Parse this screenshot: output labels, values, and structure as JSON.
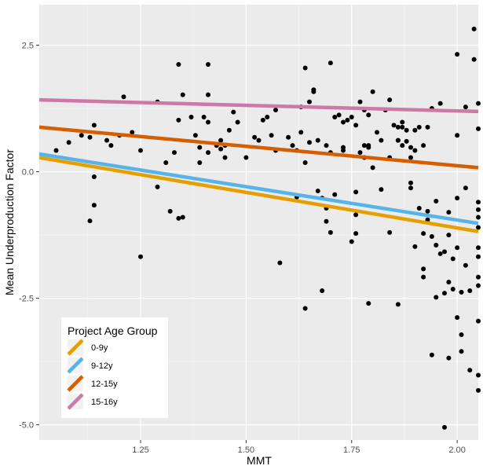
{
  "chart_data": {
    "type": "scatter",
    "xlabel": "MMT",
    "ylabel": "Mean Underproduction Factor",
    "xlim": [
      1.01,
      2.05
    ],
    "ylim": [
      -5.3,
      3.3
    ],
    "x_ticks": [
      {
        "value": 1.25,
        "label": "1.25"
      },
      {
        "value": 1.5,
        "label": "1.50"
      },
      {
        "value": 1.75,
        "label": "1.75"
      },
      {
        "value": 2.0,
        "label": "2.00"
      }
    ],
    "y_ticks": [
      {
        "value": 2.5,
        "label": "2.5"
      },
      {
        "value": 0.0,
        "label": "0.0"
      },
      {
        "value": -2.5,
        "label": "-2.5"
      },
      {
        "value": -5.0,
        "label": "-5.0"
      }
    ],
    "grid": true,
    "background": "#ebebeb",
    "legend": {
      "title": "Project Age Group",
      "placement": "bottom-left",
      "entries": [
        "0-9y",
        "9-12y",
        "12-15y",
        "15-16y"
      ]
    },
    "lines": [
      {
        "name": "0-9y",
        "color": "#e69f00",
        "x": [
          1.01,
          2.05
        ],
        "y": [
          0.28,
          -1.18
        ]
      },
      {
        "name": "9-12y",
        "color": "#56b4e9",
        "x": [
          1.01,
          2.05
        ],
        "y": [
          0.35,
          -1.02
        ]
      },
      {
        "name": "12-15y",
        "color": "#d55e00",
        "x": [
          1.01,
          2.05
        ],
        "y": [
          0.88,
          0.08
        ]
      },
      {
        "name": "15-16y",
        "color": "#cc79a7",
        "x": [
          1.01,
          2.05
        ],
        "y": [
          1.42,
          1.19
        ]
      }
    ],
    "points": [
      [
        1.05,
        0.42
      ],
      [
        1.08,
        0.58
      ],
      [
        1.11,
        0.72
      ],
      [
        1.13,
        0.68
      ],
      [
        1.14,
        0.92
      ],
      [
        1.14,
        -0.1
      ],
      [
        1.13,
        -0.97
      ],
      [
        1.14,
        -0.66
      ],
      [
        1.17,
        0.62
      ],
      [
        1.18,
        0.52
      ],
      [
        1.2,
        0.72
      ],
      [
        1.21,
        1.48
      ],
      [
        1.23,
        0.78
      ],
      [
        1.25,
        0.42
      ],
      [
        1.25,
        -1.68
      ],
      [
        1.29,
        1.38
      ],
      [
        1.29,
        -0.3
      ],
      [
        1.31,
        0.18
      ],
      [
        1.32,
        -0.78
      ],
      [
        1.33,
        0.38
      ],
      [
        1.34,
        2.12
      ],
      [
        1.34,
        1.02
      ],
      [
        1.34,
        -0.92
      ],
      [
        1.35,
        1.52
      ],
      [
        1.35,
        -0.9
      ],
      [
        1.37,
        1.08
      ],
      [
        1.38,
        0.72
      ],
      [
        1.39,
        0.48
      ],
      [
        1.39,
        0.18
      ],
      [
        1.4,
        1.08
      ],
      [
        1.41,
        0.38
      ],
      [
        1.41,
        2.12
      ],
      [
        1.41,
        1.52
      ],
      [
        1.41,
        0.98
      ],
      [
        1.43,
        0.52
      ],
      [
        1.44,
        0.62
      ],
      [
        1.45,
        0.52
      ],
      [
        1.45,
        0.28
      ],
      [
        1.46,
        0.82
      ],
      [
        1.47,
        1.18
      ],
      [
        1.48,
        0.98
      ],
      [
        1.5,
        0.28
      ],
      [
        1.52,
        0.68
      ],
      [
        1.53,
        0.62
      ],
      [
        1.54,
        1.02
      ],
      [
        1.55,
        1.08
      ],
      [
        1.56,
        0.72
      ],
      [
        1.57,
        1.22
      ],
      [
        1.58,
        -1.8
      ],
      [
        1.6,
        0.68
      ],
      [
        1.61,
        0.52
      ],
      [
        1.62,
        0.42
      ],
      [
        1.63,
        1.28
      ],
      [
        1.63,
        0.78
      ],
      [
        1.64,
        2.05
      ],
      [
        1.64,
        0.18
      ],
      [
        1.64,
        -2.7
      ],
      [
        1.65,
        1.38
      ],
      [
        1.65,
        0.58
      ],
      [
        1.66,
        1.62
      ],
      [
        1.66,
        1.58
      ],
      [
        1.67,
        0.62
      ],
      [
        1.67,
        -0.38
      ],
      [
        1.68,
        -0.52
      ],
      [
        1.68,
        -2.35
      ],
      [
        1.69,
        0.52
      ],
      [
        1.69,
        -0.72
      ],
      [
        1.69,
        -0.98
      ],
      [
        1.7,
        0.38
      ],
      [
        1.7,
        2.15
      ],
      [
        1.71,
        1.08
      ],
      [
        1.71,
        -0.45
      ],
      [
        1.72,
        1.12
      ],
      [
        1.73,
        0.98
      ],
      [
        1.73,
        0.42
      ],
      [
        1.73,
        0.48
      ],
      [
        1.74,
        1.02
      ],
      [
        1.75,
        1.08
      ],
      [
        1.75,
        -1.38
      ],
      [
        1.76,
        0.92
      ],
      [
        1.76,
        -0.4
      ],
      [
        1.76,
        -0.85
      ],
      [
        1.76,
        -1.22
      ],
      [
        1.77,
        1.38
      ],
      [
        1.77,
        0.38
      ],
      [
        1.78,
        1.22
      ],
      [
        1.78,
        0.52
      ],
      [
        1.79,
        1.12
      ],
      [
        1.79,
        0.52
      ],
      [
        1.79,
        0.48
      ],
      [
        1.79,
        -2.6
      ],
      [
        1.8,
        1.58
      ],
      [
        1.81,
        0.78
      ],
      [
        1.82,
        0.62
      ],
      [
        1.82,
        -0.35
      ],
      [
        1.83,
        1.22
      ],
      [
        1.84,
        1.42
      ],
      [
        1.84,
        -1.2
      ],
      [
        1.85,
        0.92
      ],
      [
        1.86,
        0.88
      ],
      [
        1.86,
        -2.62
      ],
      [
        1.86,
        0.62
      ],
      [
        1.87,
        0.88
      ],
      [
        1.87,
        0.52
      ],
      [
        1.87,
        0.98
      ],
      [
        1.88,
        0.6
      ],
      [
        1.88,
        0.82
      ],
      [
        1.89,
        0.48
      ],
      [
        1.89,
        0.28
      ],
      [
        1.89,
        -0.32
      ],
      [
        1.89,
        -0.22
      ],
      [
        1.9,
        -1.48
      ],
      [
        1.9,
        0.82
      ],
      [
        1.9,
        0.42
      ],
      [
        1.91,
        -0.72
      ],
      [
        1.91,
        0.88
      ],
      [
        1.92,
        0.52
      ],
      [
        1.92,
        -1.92
      ],
      [
        1.92,
        -1.22
      ],
      [
        1.92,
        -2.08
      ],
      [
        1.93,
        0.88
      ],
      [
        1.93,
        -0.78
      ],
      [
        1.93,
        -0.95
      ],
      [
        1.94,
        1.25
      ],
      [
        1.94,
        -1.28
      ],
      [
        1.94,
        -3.62
      ],
      [
        1.95,
        -0.58
      ],
      [
        1.95,
        -2.48
      ],
      [
        1.95,
        -1.45
      ],
      [
        1.96,
        1.35
      ],
      [
        1.96,
        -1.62
      ],
      [
        1.97,
        -2.4
      ],
      [
        1.97,
        -1.58
      ],
      [
        1.97,
        -5.05
      ],
      [
        1.98,
        -2.18
      ],
      [
        1.98,
        -3.68
      ],
      [
        1.98,
        -1.25
      ],
      [
        1.98,
        -0.8
      ],
      [
        1.99,
        -2.32
      ],
      [
        1.99,
        -1.72
      ],
      [
        2.0,
        0.72
      ],
      [
        2.0,
        2.32
      ],
      [
        2.0,
        -0.52
      ],
      [
        2.0,
        -2.88
      ],
      [
        2.0,
        -1.5
      ],
      [
        2.01,
        -3.55
      ],
      [
        2.01,
        -3.22
      ],
      [
        2.01,
        -2.38
      ],
      [
        2.02,
        1.28
      ],
      [
        2.02,
        -0.32
      ],
      [
        2.02,
        -1.85
      ],
      [
        2.03,
        -2.35
      ],
      [
        2.03,
        -3.92
      ],
      [
        2.04,
        2.22
      ],
      [
        2.04,
        2.82
      ],
      [
        2.05,
        -1.68
      ],
      [
        2.05,
        -2.08
      ],
      [
        2.05,
        -0.75
      ],
      [
        2.05,
        -0.6
      ],
      [
        2.05,
        -1.1
      ],
      [
        2.05,
        -4.32
      ],
      [
        2.05,
        -4.02
      ],
      [
        2.05,
        -2.95
      ],
      [
        2.05,
        -2.25
      ],
      [
        2.05,
        0.85
      ],
      [
        2.05,
        1.35
      ],
      [
        2.05,
        -1.5
      ],
      [
        2.05,
        -0.9
      ],
      [
        1.86,
        0.62
      ],
      [
        1.78,
        0.28
      ],
      [
        1.8,
        0.08
      ],
      [
        1.84,
        0.28
      ],
      [
        1.57,
        0.42
      ],
      [
        1.44,
        0.45
      ],
      [
        1.62,
        -0.5
      ],
      [
        1.7,
        -1.2
      ]
    ]
  }
}
